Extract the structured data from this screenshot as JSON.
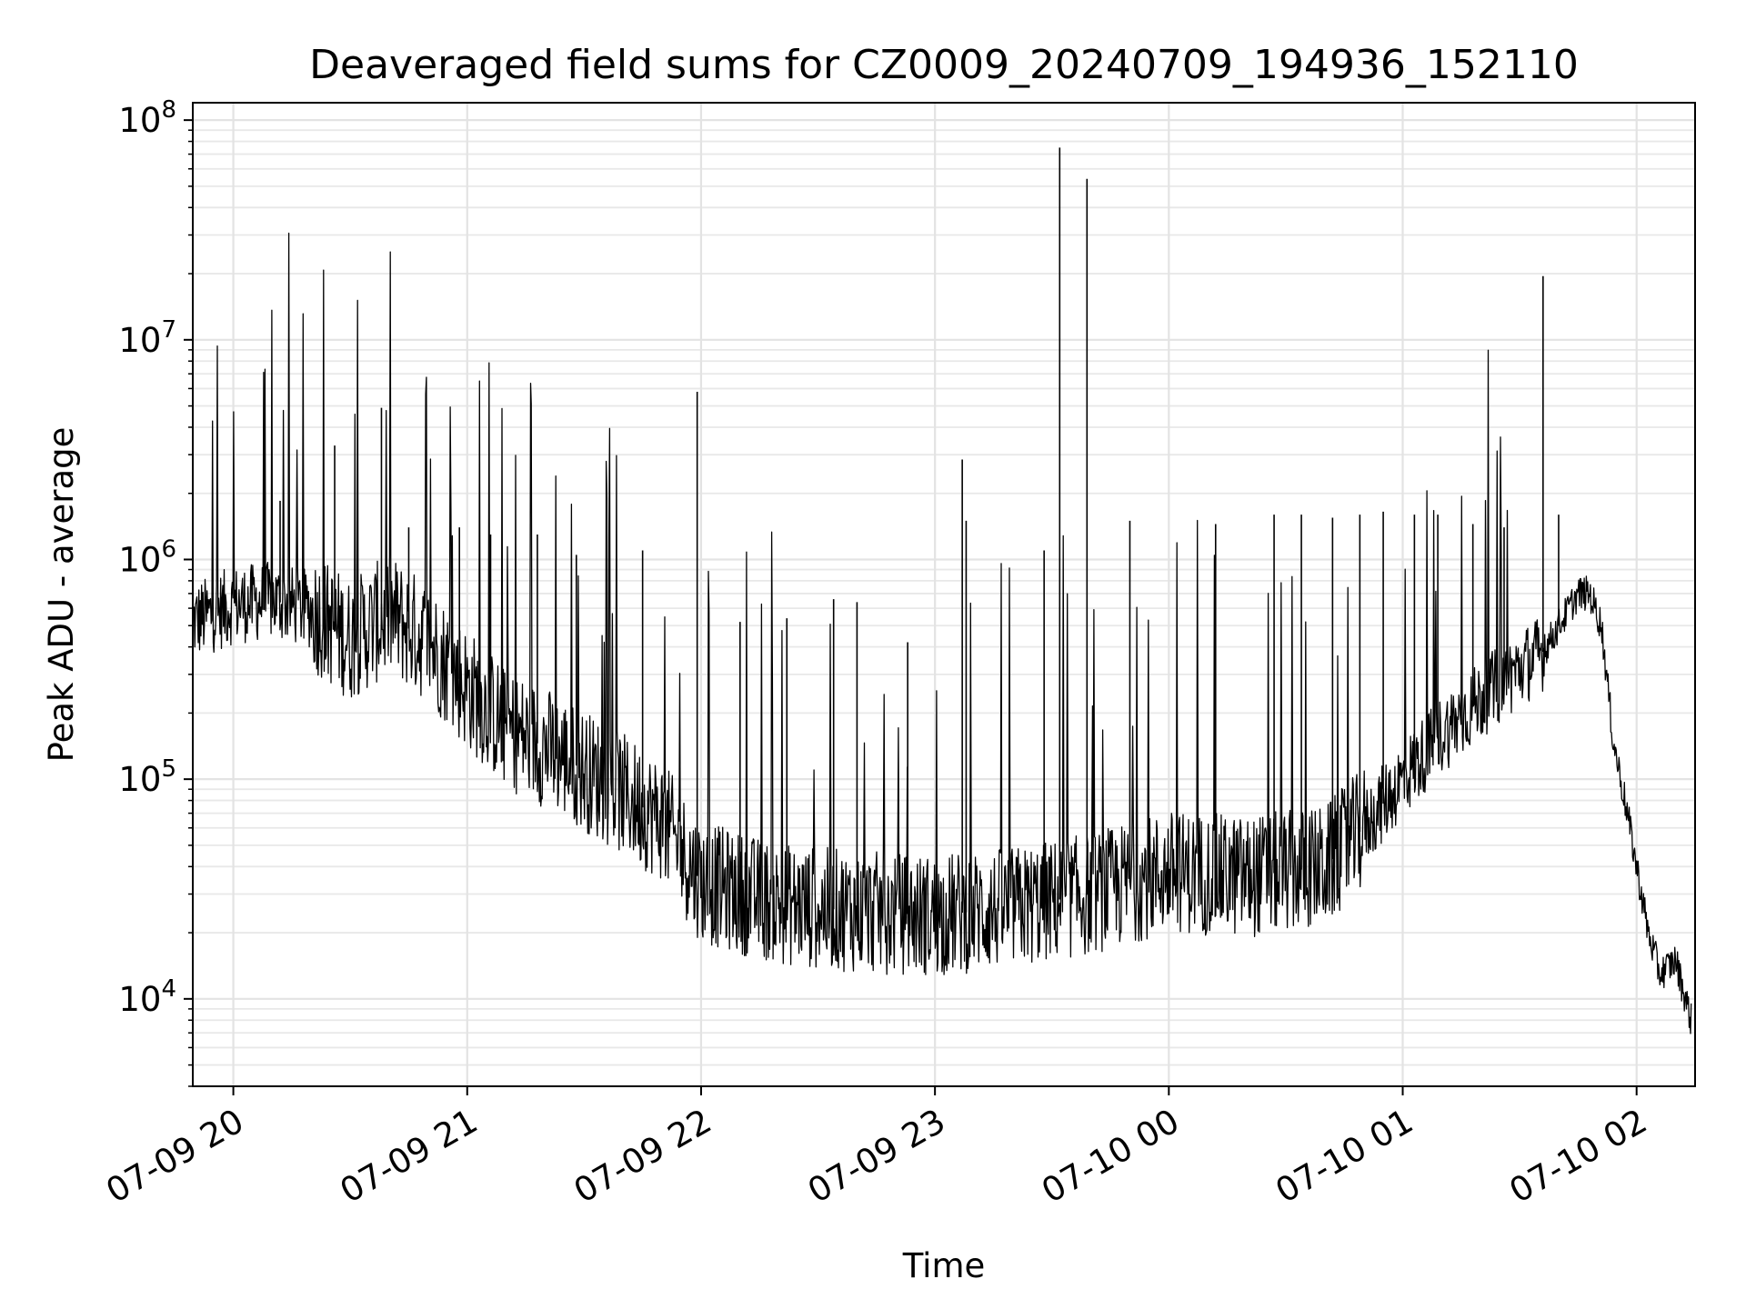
{
  "chart_data": {
    "type": "line",
    "title": "Deaveraged field sums for CZ0009_20240709_194936_152110",
    "xlabel": "Time",
    "ylabel": "Peak ADU - average",
    "yscale": "log",
    "ylim": [
      4000,
      120000000
    ],
    "xlim": [
      "2024-07-09 19:49:36",
      "2024-07-10 02:15:00"
    ],
    "grid": true,
    "legend": "none",
    "line_color": "#000000",
    "x_ticks": [
      {
        "at": "2024-07-09 20:00",
        "label": "07-09 20"
      },
      {
        "at": "2024-07-09 21:00",
        "label": "07-09 21"
      },
      {
        "at": "2024-07-09 22:00",
        "label": "07-09 22"
      },
      {
        "at": "2024-07-09 23:00",
        "label": "07-09 23"
      },
      {
        "at": "2024-07-10 00:00",
        "label": "07-10 00"
      },
      {
        "at": "2024-07-10 01:00",
        "label": "07-10 01"
      },
      {
        "at": "2024-07-10 02:00",
        "label": "07-10 02"
      }
    ],
    "y_ticks": [
      {
        "value": 10000,
        "base": "10",
        "exp": "4"
      },
      {
        "value": 100000,
        "base": "10",
        "exp": "5"
      },
      {
        "value": 1000000,
        "base": "10",
        "exp": "6"
      },
      {
        "value": 10000000,
        "base": "10",
        "exp": "7"
      },
      {
        "value": 100000000,
        "base": "10",
        "exp": "8"
      }
    ],
    "series": [
      {
        "baseline": {
          "x": [
            "2024-07-09 19:49:36",
            "2024-07-09 20:00",
            "2024-07-09 20:10",
            "2024-07-09 20:20",
            "2024-07-09 20:30",
            "2024-07-09 20:40",
            "2024-07-09 20:50",
            "2024-07-09 21:00",
            "2024-07-09 21:10",
            "2024-07-09 21:20",
            "2024-07-09 21:30",
            "2024-07-09 21:40",
            "2024-07-09 21:50",
            "2024-07-09 22:00",
            "2024-07-09 22:20",
            "2024-07-09 22:40",
            "2024-07-09 23:00",
            "2024-07-09 23:20",
            "2024-07-09 23:40",
            "2024-07-10 00:00",
            "2024-07-10 00:20",
            "2024-07-10 00:40",
            "2024-07-10 00:50",
            "2024-07-10 01:00",
            "2024-07-10 01:10",
            "2024-07-10 01:20",
            "2024-07-10 01:30",
            "2024-07-10 01:36",
            "2024-07-10 01:45",
            "2024-07-10 01:48",
            "2024-07-10 01:51",
            "2024-07-10 01:54",
            "2024-07-10 01:57",
            "2024-07-10 02:00",
            "2024-07-10 02:03",
            "2024-07-10 02:06",
            "2024-07-10 02:10",
            "2024-07-10 02:14"
          ],
          "y": [
            520000,
            620000,
            650000,
            590000,
            430000,
            560000,
            420000,
            260000,
            170000,
            140000,
            110000,
            85000,
            65000,
            34000,
            27000,
            25000,
            24000,
            26000,
            30000,
            38000,
            36000,
            40000,
            60000,
            100000,
            160000,
            230000,
            320000,
            380000,
            700000,
            700000,
            500000,
            150000,
            80000,
            40000,
            20000,
            13000,
            15000,
            8000
          ]
        },
        "spikes": {
          "x": [
            "2024-07-09 20:12",
            "2024-07-09 20:26",
            "2024-07-09 20:38",
            "2024-07-09 21:59",
            "2024-07-09 23:07",
            "2024-07-09 23:32",
            "2024-07-09 23:39",
            "2024-07-10 01:36",
            "2024-07-09 20:45",
            "2024-07-09 20:58",
            "2024-07-09 21:06",
            "2024-07-09 21:18",
            "2024-07-09 21:28",
            "2024-07-09 21:45",
            "2024-07-09 22:10",
            "2024-07-09 22:22",
            "2024-07-09 22:34",
            "2024-07-09 22:40",
            "2024-07-09 22:53",
            "2024-07-09 23:08",
            "2024-07-09 23:28",
            "2024-07-09 23:50",
            "2024-07-10 00:12",
            "2024-07-10 00:27",
            "2024-07-10 00:34",
            "2024-07-10 00:42",
            "2024-07-10 00:49",
            "2024-07-10 00:55",
            "2024-07-10 01:03",
            "2024-07-10 01:09",
            "2024-07-10 01:18",
            "2024-07-10 01:26",
            "2024-07-10 01:40"
          ],
          "y": [
            1850000,
            3300000,
            4900000,
            5800000,
            2850000,
            75000000,
            54000000,
            19500000,
            1400000,
            1400000,
            1300000,
            1300000,
            1050000,
            1100000,
            520000,
            540000,
            660000,
            640000,
            420000,
            1500000,
            1100000,
            1500000,
            1450000,
            1600000,
            1600000,
            1550000,
            1600000,
            1650000,
            1600000,
            1600000,
            1450000,
            1400000,
            1600000
          ]
        }
      }
    ]
  }
}
